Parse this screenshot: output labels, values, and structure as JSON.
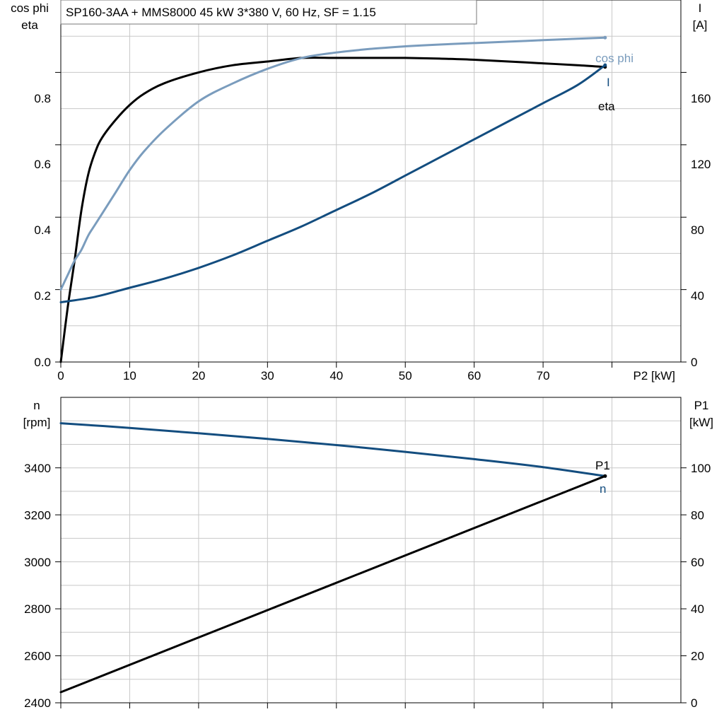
{
  "colors": {
    "eta": "#000000",
    "cos_phi": "#7a9cbd",
    "current": "#134d7f",
    "n": "#134d7f",
    "P1": "#000000",
    "grid": "#c8c8c8"
  },
  "chart_data": [
    {
      "type": "line",
      "title": "SP160-3AA + MMS8000   45 kW   3*380 V, 60 Hz, SF = 1.15",
      "xlabel": "P2 [kW]",
      "ylabel_left": [
        "cos phi",
        "eta"
      ],
      "ylabel_right": [
        "I",
        "[A]"
      ],
      "xlim": [
        0,
        90
      ],
      "ylim_left": [
        0,
        1.0
      ],
      "ylim_right": [
        0,
        200
      ],
      "x_ticks": [
        "0",
        "10",
        "20",
        "30",
        "40",
        "50",
        "60",
        "70"
      ],
      "y_ticks_left": [
        "0.0",
        "0.2",
        "0.4",
        "0.6",
        "0.8"
      ],
      "y_ticks_right": [
        "0",
        "40",
        "80",
        "120",
        "160"
      ],
      "grid": true,
      "series": [
        {
          "name": "eta",
          "axis": "left",
          "x": [
            0,
            1,
            2,
            3,
            4,
            5,
            6,
            8,
            10,
            12,
            15,
            20,
            25,
            30,
            35,
            40,
            45,
            50,
            55,
            60,
            65,
            70,
            75,
            79
          ],
          "y": [
            0.0,
            0.15,
            0.28,
            0.42,
            0.52,
            0.58,
            0.62,
            0.67,
            0.71,
            0.74,
            0.77,
            0.8,
            0.82,
            0.83,
            0.84,
            0.84,
            0.84,
            0.84,
            0.838,
            0.835,
            0.83,
            0.825,
            0.82,
            0.815
          ]
        },
        {
          "name": "cos phi",
          "axis": "left",
          "x": [
            0,
            1,
            2,
            3,
            4,
            5,
            6,
            8,
            10,
            12,
            15,
            20,
            25,
            30,
            35,
            40,
            45,
            50,
            55,
            60,
            65,
            70,
            75,
            79
          ],
          "y": [
            0.2,
            0.24,
            0.28,
            0.31,
            0.35,
            0.38,
            0.41,
            0.47,
            0.53,
            0.58,
            0.64,
            0.72,
            0.77,
            0.81,
            0.84,
            0.855,
            0.865,
            0.872,
            0.877,
            0.881,
            0.885,
            0.889,
            0.893,
            0.896
          ]
        },
        {
          "name": "I",
          "axis": "right",
          "x": [
            0,
            5,
            10,
            15,
            20,
            25,
            30,
            35,
            40,
            45,
            50,
            55,
            60,
            65,
            70,
            75,
            79
          ],
          "y": [
            33,
            36,
            41,
            46,
            52,
            59,
            67,
            75,
            84,
            93,
            103,
            113,
            123,
            133,
            143,
            153,
            164
          ]
        }
      ],
      "end_labels": {
        "cos_phi": "cos phi",
        "I": "I",
        "eta": "eta"
      }
    },
    {
      "type": "line",
      "xlabel": "",
      "ylabel_left": [
        "n",
        "[rpm]"
      ],
      "ylabel_right": [
        "P1",
        "[kW]"
      ],
      "xlim": [
        0,
        90
      ],
      "ylim_left": [
        2400,
        3700
      ],
      "ylim_right": [
        0,
        130
      ],
      "y_ticks_left": [
        "2400",
        "2600",
        "2800",
        "3000",
        "3200",
        "3400"
      ],
      "y_ticks_right": [
        "0",
        "20",
        "40",
        "60",
        "80",
        "100"
      ],
      "grid": true,
      "series": [
        {
          "name": "n",
          "axis": "left",
          "x": [
            0,
            10,
            20,
            30,
            40,
            50,
            60,
            70,
            79
          ],
          "y": [
            3590,
            3570,
            3547,
            3523,
            3497,
            3468,
            3437,
            3403,
            3365
          ]
        },
        {
          "name": "P1",
          "axis": "right",
          "x": [
            0,
            79
          ],
          "y": [
            4.5,
            96.5
          ]
        }
      ],
      "end_labels": {
        "P1": "P1",
        "n": "n"
      }
    }
  ]
}
